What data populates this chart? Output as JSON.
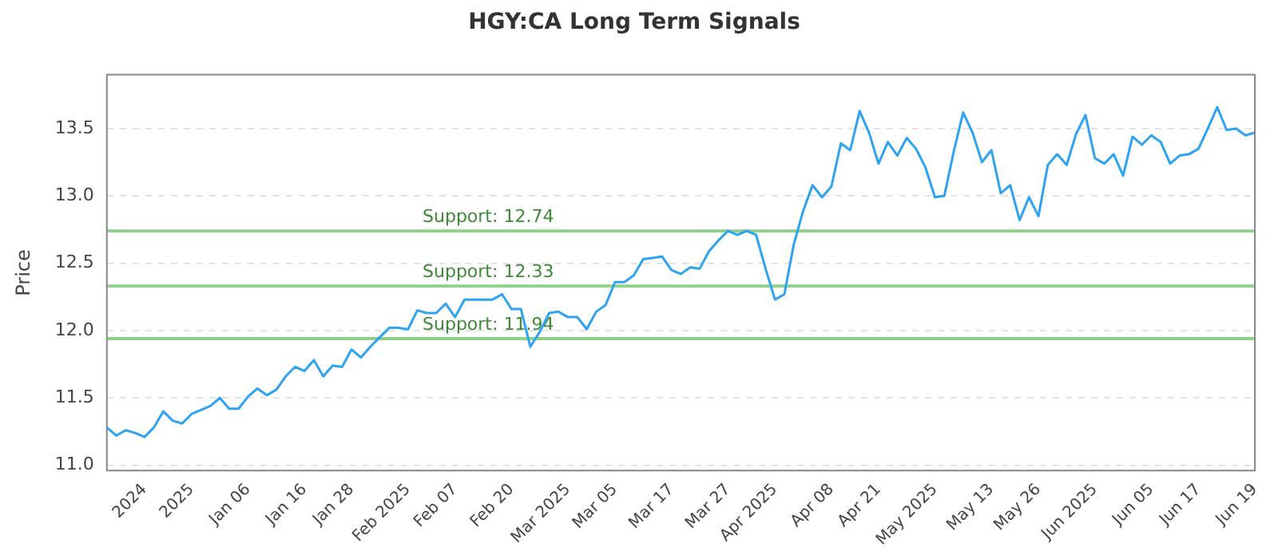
{
  "chart_data": {
    "type": "line",
    "title": "HGY:CA Long Term Signals",
    "ylabel": "Price",
    "categories": [
      null,
      null,
      null,
      null,
      "2024",
      null,
      null,
      null,
      null,
      "2025",
      null,
      null,
      null,
      null,
      null,
      "Jan 06",
      null,
      null,
      null,
      null,
      null,
      "Jan 16",
      null,
      null,
      null,
      null,
      "Jan 28",
      null,
      null,
      null,
      null,
      null,
      "Feb 2025",
      null,
      null,
      null,
      null,
      "Feb 07",
      null,
      null,
      null,
      null,
      null,
      "Feb 20",
      null,
      null,
      null,
      null,
      null,
      "Mar 2025",
      null,
      null,
      null,
      null,
      "Mar 05",
      null,
      null,
      null,
      null,
      null,
      "Mar 17",
      null,
      null,
      null,
      null,
      null,
      "Mar 27",
      null,
      null,
      null,
      null,
      "Apr 2025",
      null,
      null,
      null,
      null,
      null,
      "Apr 08",
      null,
      null,
      null,
      null,
      "Apr 21",
      null,
      null,
      null,
      null,
      null,
      "May 2025",
      null,
      null,
      null,
      null,
      null,
      "May 13",
      null,
      null,
      null,
      null,
      "May 26",
      null,
      null,
      null,
      null,
      null,
      "Jun 2025",
      null,
      null,
      null,
      null,
      null,
      "Jun 05",
      null,
      null,
      null,
      null,
      "Jun 17",
      null,
      null,
      null,
      null,
      null,
      "Jun 19"
    ],
    "series": [
      {
        "color": "#2ea3f2",
        "values": [
          11.28,
          11.22,
          11.26,
          11.24,
          11.21,
          11.28,
          11.4,
          11.33,
          11.31,
          11.38,
          11.41,
          11.44,
          11.5,
          11.42,
          11.42,
          11.51,
          11.57,
          11.52,
          11.56,
          11.66,
          11.73,
          11.7,
          11.78,
          11.66,
          11.74,
          11.73,
          11.86,
          11.8,
          11.88,
          11.95,
          12.02,
          12.02,
          12.01,
          12.15,
          12.13,
          12.13,
          12.2,
          12.1,
          12.23,
          12.23,
          12.23,
          12.23,
          12.27,
          12.16,
          12.16,
          11.88,
          11.99,
          12.13,
          12.14,
          12.1,
          12.1,
          12.01,
          12.14,
          12.19,
          12.36,
          12.36,
          12.41,
          12.53,
          12.54,
          12.55,
          12.45,
          12.42,
          12.47,
          12.46,
          12.59,
          12.67,
          12.74,
          12.71,
          12.74,
          12.71,
          12.46,
          12.23,
          12.27,
          12.64,
          12.89,
          13.08,
          12.99,
          13.07,
          13.39,
          13.34,
          13.63,
          13.47,
          13.24,
          13.4,
          13.3,
          13.43,
          13.35,
          13.21,
          12.99,
          13.0,
          13.33,
          13.62,
          13.47,
          13.25,
          13.34,
          13.02,
          13.08,
          12.82,
          12.99,
          12.85,
          13.23,
          13.31,
          13.23,
          13.46,
          13.6,
          13.28,
          13.24,
          13.31,
          13.15,
          13.44,
          13.38,
          13.45,
          13.4,
          13.24,
          13.3,
          13.31,
          13.35,
          13.5,
          13.66,
          13.49,
          13.5,
          13.45,
          13.47
        ]
      }
    ],
    "ylim": [
      10.96,
      13.9
    ],
    "yticks": [
      {
        "value": 11,
        "label": "11.0"
      },
      {
        "value": 11.5,
        "label": "11.5"
      },
      {
        "value": 12,
        "label": "12.0"
      },
      {
        "value": 12.5,
        "label": "12.5"
      },
      {
        "value": 13,
        "label": "13.0"
      },
      {
        "value": 13.5,
        "label": "13.5"
      }
    ],
    "ref_lines": [
      {
        "axis": "y",
        "value": 12.74,
        "label": "Support: 12.74",
        "color": "#8fd18a"
      },
      {
        "axis": "y",
        "value": 12.33,
        "label": "Support: 12.33",
        "color": "#8fd18a"
      },
      {
        "axis": "y",
        "value": 11.94,
        "label": "Support: 11.94",
        "color": "#8fd18a"
      }
    ],
    "grid": "y",
    "legend": false,
    "marker": "none",
    "line_style": "solid"
  }
}
